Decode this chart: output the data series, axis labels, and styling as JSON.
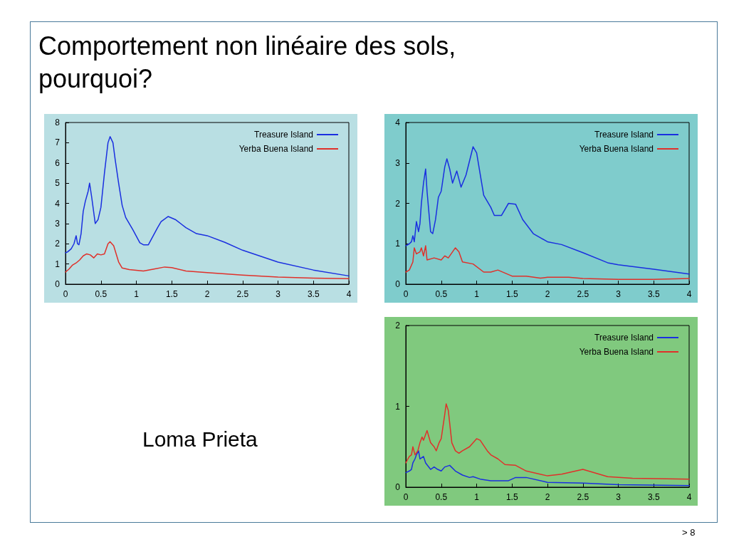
{
  "chart_data": [
    {
      "type": "line",
      "title": "Comportement non linéaire des sols, pourquoi?",
      "annotations": [
        "Loma Prieta",
        "> 8"
      ],
      "xlim": [
        0,
        4
      ],
      "xticks": [
        0,
        0.5,
        1,
        1.5,
        2,
        2.5,
        3,
        3.5,
        4
      ],
      "ylim": [
        0,
        8
      ],
      "yticks": [
        0,
        1,
        2,
        3,
        4,
        5,
        6,
        7,
        8
      ],
      "grid": false,
      "legend": "top right",
      "marker": "none",
      "line_style": "solid",
      "series": [
        {
          "name": "Treasure Island",
          "color": "#1a2fe0",
          "x": [
            0,
            0.03,
            0.08,
            0.12,
            0.15,
            0.17,
            0.19,
            0.22,
            0.25,
            0.28,
            0.32,
            0.34,
            0.37,
            0.42,
            0.46,
            0.5,
            0.55,
            0.6,
            0.63,
            0.67,
            0.7,
            0.75,
            0.8,
            0.85,
            0.95,
            1.05,
            1.1,
            1.17,
            1.3,
            1.35,
            1.45,
            1.55,
            1.7,
            1.85,
            2.0,
            2.25,
            2.5,
            3.0,
            3.5,
            4.0
          ],
          "values": [
            1.55,
            1.6,
            1.75,
            2.0,
            2.4,
            2.0,
            1.95,
            2.5,
            3.6,
            4.1,
            4.6,
            5.0,
            4.3,
            3.0,
            3.2,
            3.8,
            5.5,
            7.0,
            7.3,
            7.0,
            6.2,
            5.0,
            3.9,
            3.3,
            2.7,
            2.05,
            1.95,
            1.95,
            2.8,
            3.1,
            3.35,
            3.2,
            2.8,
            2.5,
            2.4,
            2.07,
            1.68,
            1.09,
            0.7,
            0.41
          ]
        },
        {
          "name": "Yerba Buena Island",
          "color": "#e0302a",
          "x": [
            0,
            0.05,
            0.1,
            0.15,
            0.2,
            0.25,
            0.3,
            0.35,
            0.4,
            0.45,
            0.5,
            0.55,
            0.6,
            0.63,
            0.68,
            0.75,
            0.8,
            0.9,
            1.1,
            1.25,
            1.4,
            1.5,
            1.7,
            2.0,
            2.5,
            3.0,
            3.5,
            4.0
          ],
          "values": [
            0.6,
            0.75,
            0.95,
            1.05,
            1.2,
            1.4,
            1.5,
            1.45,
            1.3,
            1.5,
            1.45,
            1.5,
            2.0,
            2.1,
            1.9,
            1.1,
            0.8,
            0.72,
            0.65,
            0.75,
            0.85,
            0.82,
            0.65,
            0.57,
            0.45,
            0.35,
            0.3,
            0.27
          ]
        }
      ]
    },
    {
      "type": "line",
      "xlim": [
        0,
        4
      ],
      "xticks": [
        0,
        0.5,
        1,
        1.5,
        2,
        2.5,
        3,
        3.5,
        4
      ],
      "ylim": [
        0,
        4
      ],
      "yticks": [
        0,
        1,
        2,
        3,
        4
      ],
      "grid": false,
      "legend": "top right",
      "marker": "none",
      "line_style": "solid",
      "series": [
        {
          "name": "Treasure Island",
          "color": "#1a2fe0",
          "x": [
            0,
            0.05,
            0.08,
            0.1,
            0.12,
            0.15,
            0.18,
            0.2,
            0.22,
            0.25,
            0.28,
            0.3,
            0.35,
            0.38,
            0.42,
            0.46,
            0.5,
            0.55,
            0.58,
            0.62,
            0.66,
            0.72,
            0.78,
            0.85,
            0.95,
            1.0,
            1.1,
            1.2,
            1.25,
            1.35,
            1.45,
            1.55,
            1.65,
            1.8,
            2.0,
            2.2,
            2.5,
            2.85,
            3.0,
            3.5,
            4.0
          ],
          "values": [
            0.95,
            1.0,
            1.05,
            1.2,
            1.05,
            1.55,
            1.3,
            1.5,
            2.0,
            2.5,
            2.85,
            2.3,
            1.3,
            1.25,
            1.6,
            2.15,
            2.3,
            2.9,
            3.1,
            2.85,
            2.5,
            2.8,
            2.4,
            2.7,
            3.4,
            3.25,
            2.2,
            1.9,
            1.7,
            1.7,
            2.0,
            1.98,
            1.6,
            1.25,
            1.05,
            0.98,
            0.78,
            0.53,
            0.48,
            0.37,
            0.25
          ]
        },
        {
          "name": "Yerba Buena Island",
          "color": "#e0302a",
          "x": [
            0,
            0.05,
            0.1,
            0.12,
            0.15,
            0.2,
            0.22,
            0.25,
            0.28,
            0.3,
            0.4,
            0.5,
            0.55,
            0.6,
            0.7,
            0.75,
            0.8,
            0.95,
            1.1,
            1.2,
            1.3,
            1.5,
            1.7,
            1.9,
            2.0,
            2.3,
            2.5,
            3.0,
            3.5,
            4.0
          ],
          "values": [
            0.3,
            0.35,
            0.55,
            0.9,
            0.75,
            0.8,
            0.9,
            0.7,
            0.95,
            0.6,
            0.65,
            0.6,
            0.7,
            0.65,
            0.9,
            0.8,
            0.55,
            0.5,
            0.3,
            0.3,
            0.35,
            0.2,
            0.2,
            0.15,
            0.17,
            0.17,
            0.14,
            0.12,
            0.12,
            0.14
          ]
        }
      ]
    },
    {
      "type": "line",
      "xlim": [
        0,
        4
      ],
      "xticks": [
        0,
        0.5,
        1,
        1.5,
        2,
        2.5,
        3,
        3.5,
        4
      ],
      "ylim": [
        0,
        2
      ],
      "yticks": [
        0,
        1,
        2
      ],
      "grid": false,
      "legend": "top right",
      "marker": "none",
      "line_style": "solid",
      "series": [
        {
          "name": "Treasure Island",
          "color": "#1a2fe0",
          "x": [
            0,
            0.05,
            0.08,
            0.1,
            0.13,
            0.15,
            0.18,
            0.2,
            0.25,
            0.28,
            0.35,
            0.4,
            0.45,
            0.5,
            0.55,
            0.62,
            0.7,
            0.8,
            0.9,
            0.95,
            1.05,
            1.2,
            1.45,
            1.55,
            1.7,
            2.0,
            2.5,
            3.0,
            4.0
          ],
          "values": [
            0.18,
            0.2,
            0.22,
            0.3,
            0.35,
            0.4,
            0.45,
            0.35,
            0.38,
            0.3,
            0.22,
            0.25,
            0.22,
            0.2,
            0.25,
            0.27,
            0.2,
            0.15,
            0.12,
            0.13,
            0.1,
            0.08,
            0.08,
            0.12,
            0.12,
            0.06,
            0.05,
            0.03,
            0.02
          ]
        },
        {
          "name": "Yerba Buena Island",
          "color": "#e0302a",
          "x": [
            0,
            0.03,
            0.05,
            0.08,
            0.1,
            0.13,
            0.17,
            0.2,
            0.23,
            0.25,
            0.3,
            0.35,
            0.4,
            0.43,
            0.47,
            0.5,
            0.55,
            0.57,
            0.6,
            0.65,
            0.7,
            0.75,
            0.8,
            0.9,
            1.0,
            1.05,
            1.15,
            1.2,
            1.3,
            1.4,
            1.55,
            1.7,
            2.0,
            2.2,
            2.5,
            2.85,
            3.2,
            4.0
          ],
          "values": [
            0.3,
            0.35,
            0.38,
            0.4,
            0.5,
            0.4,
            0.45,
            0.55,
            0.62,
            0.58,
            0.7,
            0.55,
            0.5,
            0.45,
            0.55,
            0.6,
            0.9,
            1.03,
            0.95,
            0.55,
            0.45,
            0.42,
            0.45,
            0.5,
            0.6,
            0.58,
            0.45,
            0.4,
            0.35,
            0.28,
            0.27,
            0.2,
            0.14,
            0.16,
            0.22,
            0.13,
            0.11,
            0.1
          ]
        }
      ]
    }
  ]
}
